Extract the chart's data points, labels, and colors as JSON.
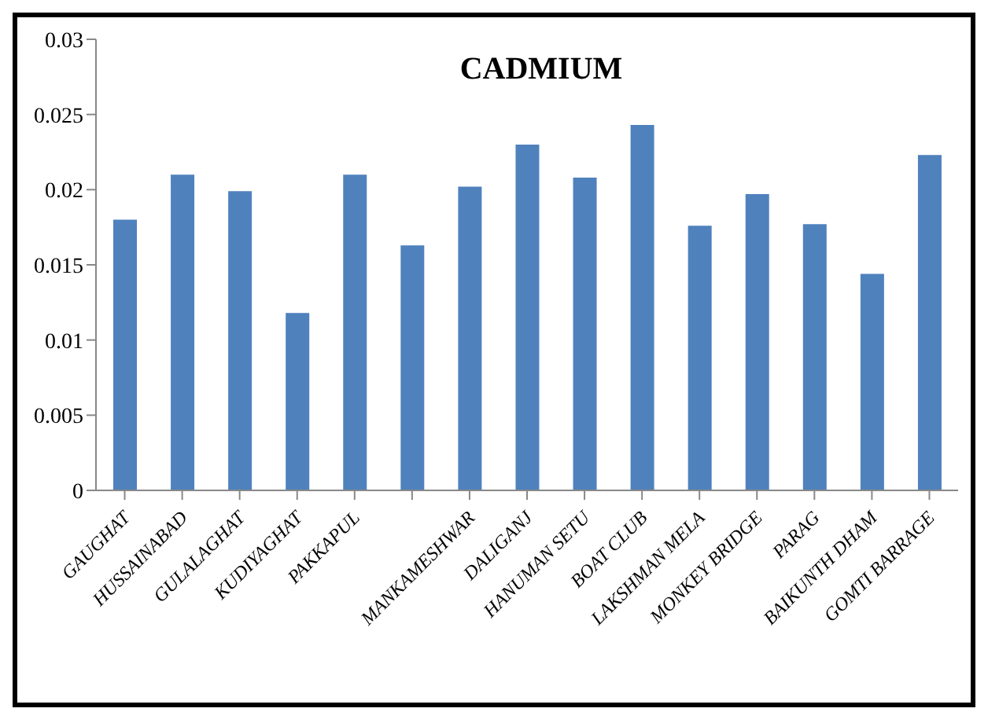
{
  "chart_data": {
    "type": "bar",
    "title": "CADMIUM",
    "categories": [
      "GAUGHAT",
      "HUSSAINABAD",
      "GULALAGHAT",
      "KUDIYAGHAT",
      "PAKKAPUL",
      null,
      "MANKAMESHWAR",
      "DALIGANJ",
      "HANUMAN SETU",
      "BOAT CLUB",
      "LAKSHMAN MELA",
      "MONKEY BRIDGE",
      "PARAG",
      "BAIKUNTH DHAM",
      "GOMTI BARRAGE"
    ],
    "values": [
      0.018,
      0.021,
      0.0199,
      0.0118,
      0.021,
      0.0163,
      0.0202,
      0.023,
      0.0208,
      0.0243,
      0.0176,
      0.0197,
      0.0177,
      0.0144,
      0.0223
    ],
    "color": "#4f81bd",
    "ylim": [
      0,
      0.03
    ],
    "yticks": [
      0,
      0.005,
      0.01,
      0.015,
      0.02,
      0.025,
      0.03
    ],
    "grid": false
  }
}
